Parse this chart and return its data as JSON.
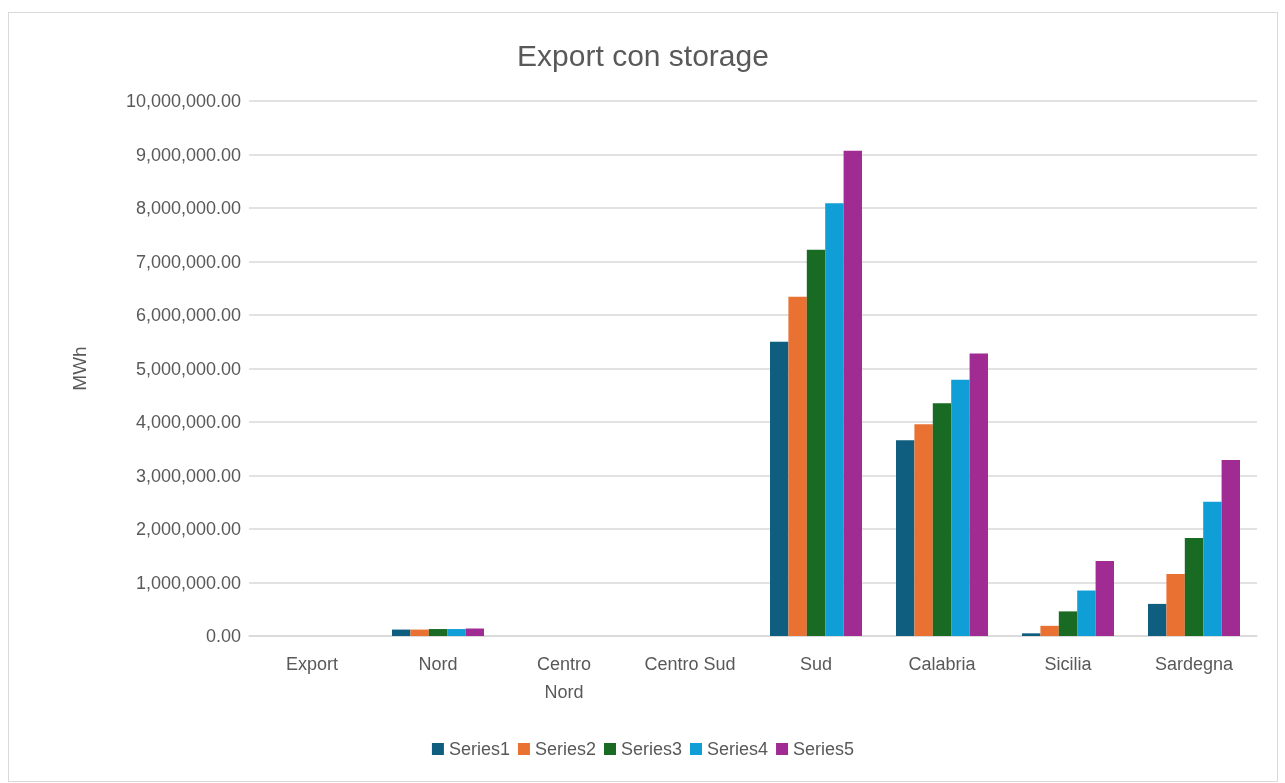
{
  "chart_data": {
    "type": "bar",
    "title": "Export con storage",
    "ylabel": "MWh",
    "categories": [
      "Export",
      "Nord",
      "Centro\nNord",
      "Centro Sud",
      "Sud",
      "Calabria",
      "Sicilia",
      "Sardegna"
    ],
    "series": [
      {
        "name": "Series1",
        "color": "#0f5e7f",
        "values": [
          0,
          120000,
          0,
          0,
          5500000,
          3660000,
          50000,
          600000
        ]
      },
      {
        "name": "Series2",
        "color": "#e97132",
        "values": [
          0,
          120000,
          0,
          0,
          6340000,
          3960000,
          190000,
          1160000
        ]
      },
      {
        "name": "Series3",
        "color": "#196b24",
        "values": [
          0,
          130000,
          0,
          0,
          7220000,
          4350000,
          460000,
          1830000
        ]
      },
      {
        "name": "Series4",
        "color": "#0f9ed5",
        "values": [
          0,
          130000,
          0,
          0,
          8090000,
          4790000,
          850000,
          2510000
        ]
      },
      {
        "name": "Series5",
        "color": "#a02b93",
        "values": [
          0,
          140000,
          0,
          0,
          9070000,
          5280000,
          1400000,
          3290000
        ]
      }
    ],
    "ylim": [
      0,
      10000000
    ],
    "yticks": [
      {
        "value": 0,
        "label": "0.00"
      },
      {
        "value": 1000000,
        "label": "1,000,000.00"
      },
      {
        "value": 2000000,
        "label": "2,000,000.00"
      },
      {
        "value": 3000000,
        "label": "3,000,000.00"
      },
      {
        "value": 4000000,
        "label": "4,000,000.00"
      },
      {
        "value": 5000000,
        "label": "5,000,000.00"
      },
      {
        "value": 6000000,
        "label": "6,000,000.00"
      },
      {
        "value": 7000000,
        "label": "7,000,000.00"
      },
      {
        "value": 8000000,
        "label": "8,000,000.00"
      },
      {
        "value": 9000000,
        "label": "9,000,000.00"
      },
      {
        "value": 10000000,
        "label": "10,000,000.00"
      }
    ],
    "grid": "y",
    "legend": "bottom"
  }
}
